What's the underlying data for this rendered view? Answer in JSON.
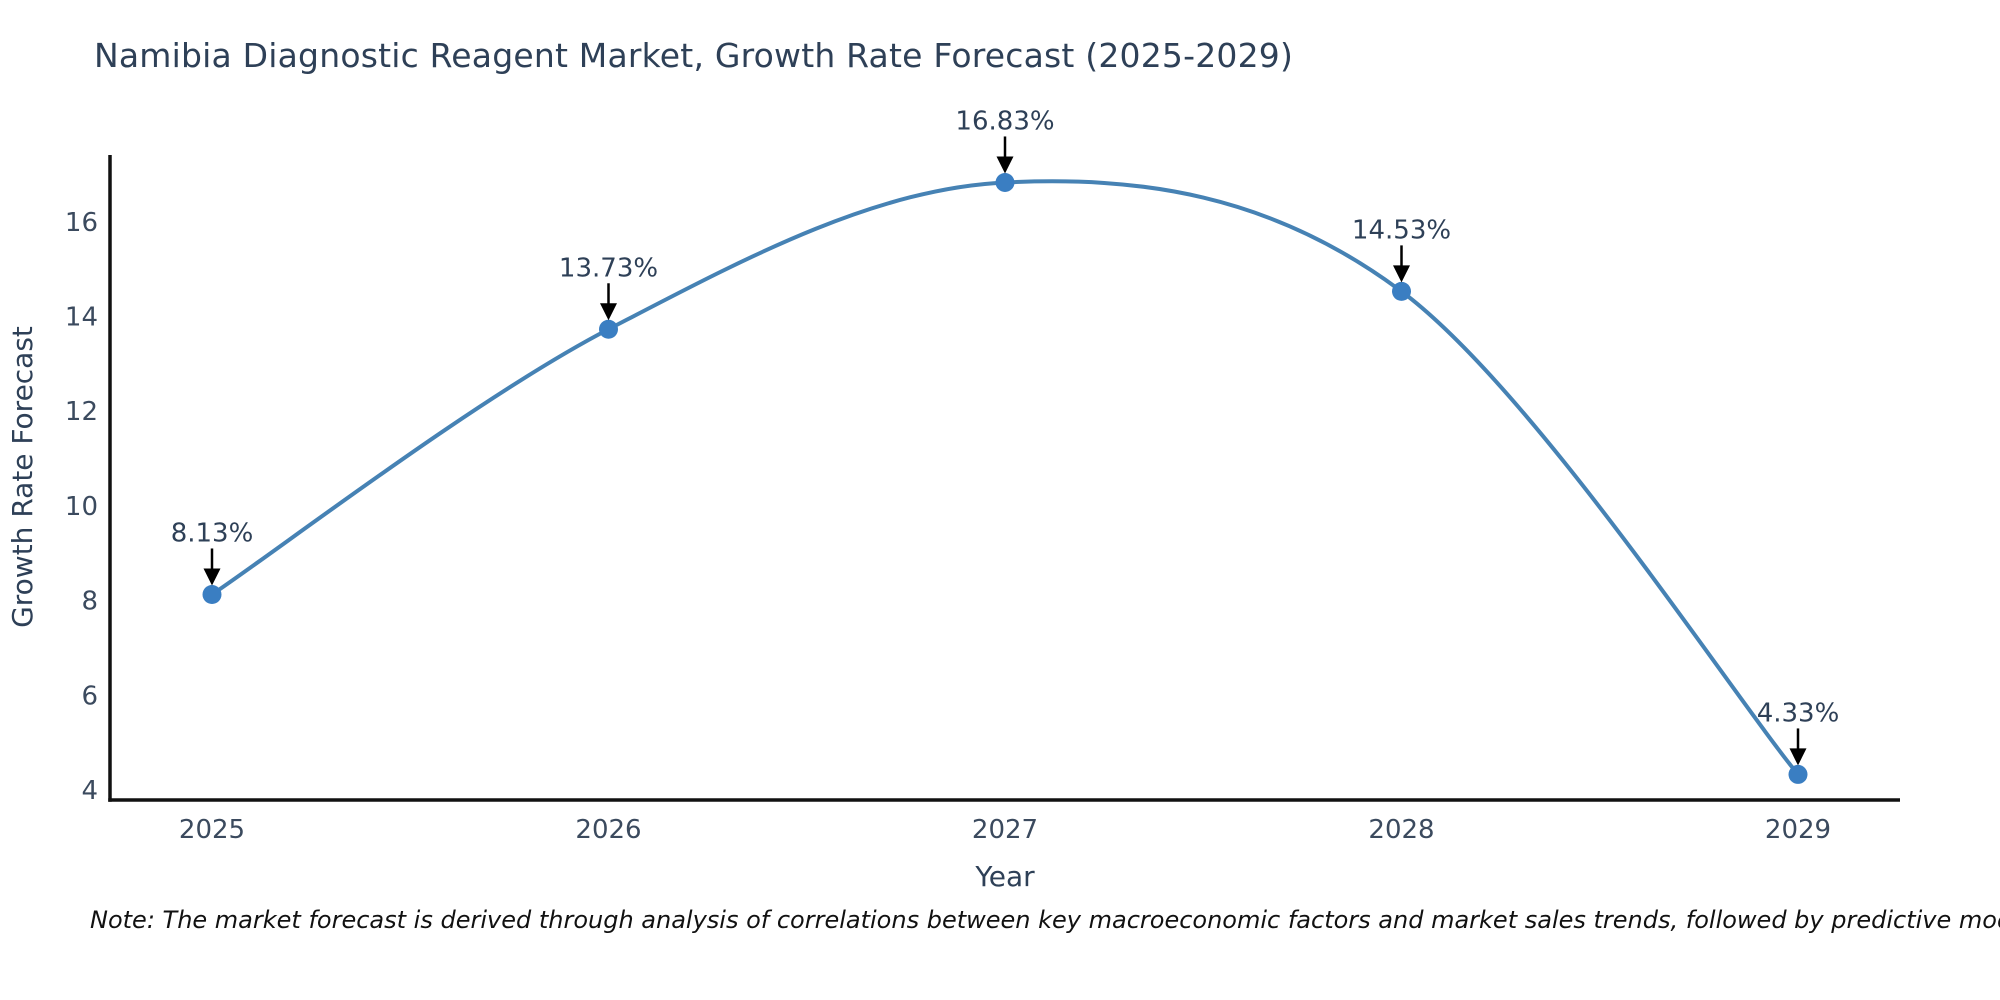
{
  "chart_data": {
    "type": "line",
    "title": "Namibia Diagnostic Reagent Market, Growth Rate Forecast (2025-2029)",
    "xlabel": "Year",
    "ylabel": "Growth Rate Forecast",
    "categories": [
      "2025",
      "2026",
      "2027",
      "2028",
      "2029"
    ],
    "values": [
      8.13,
      13.73,
      16.83,
      14.53,
      4.33
    ],
    "point_labels": [
      "8.13%",
      "13.73%",
      "16.83%",
      "14.53%",
      "4.33%"
    ],
    "yticks": [
      4,
      6,
      8,
      10,
      12,
      14,
      16
    ],
    "ylim": [
      3.79,
      17.41
    ],
    "grid": false,
    "legend": "none",
    "line_color": "#4682b4",
    "marker_color": "#3a7ec2",
    "axis_color": "#111111",
    "title_color": "#2e4057",
    "tick_color": "#3b4a5e",
    "axis_title_color": "#2e4057",
    "annotation_text_color": "#2e4057",
    "arrow_color": "#000000"
  },
  "note": {
    "text": "Note: The market forecast is derived through analysis of correlations between key macroeconomic factors and market sales trends, followed by predictive modeling to project future sales."
  }
}
